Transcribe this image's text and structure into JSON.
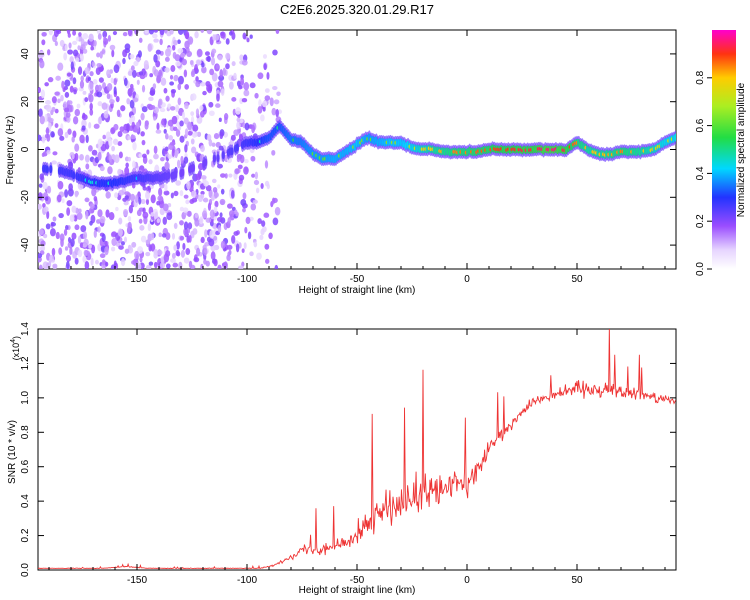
{
  "figure": {
    "title": "C2E6.2025.320.01.29.R17"
  },
  "colors": {
    "line": "#ee3333",
    "axis": "#000000",
    "spectro_low": "#a070ff",
    "spectro_mid": "#22cc66",
    "spectro_high": "#dd2222"
  },
  "chart_data": [
    {
      "type": "heatmap",
      "title": "C2E6.2025.320.01.29.R17",
      "xlabel": "Height of straight line (km)",
      "ylabel": "Frequency (Hz)",
      "xlim": [
        -195,
        95
      ],
      "ylim": [
        -50,
        50
      ],
      "x_ticks": [
        -150,
        -100,
        -50,
        0,
        50
      ],
      "x_tick_labels": [
        "-150",
        "-100",
        "-50",
        "0",
        "50"
      ],
      "y_ticks": [
        -40,
        -20,
        0,
        20,
        40
      ],
      "y_tick_labels": [
        "-40",
        "-20",
        "0",
        "20",
        "40"
      ],
      "colorbar": {
        "label": "Normalized spectral amplitude",
        "range": [
          0,
          1
        ],
        "ticks": [
          0.0,
          0.2,
          0.4,
          0.6,
          0.8
        ],
        "tick_labels": [
          "0.0",
          "0.2",
          "0.4",
          "0.6",
          "0.8"
        ]
      },
      "ridge": {
        "x": [
          -190,
          -180,
          -170,
          -160,
          -150,
          -140,
          -130,
          -120,
          -110,
          -100,
          -95,
          -90,
          -85,
          -80,
          -75,
          -70,
          -65,
          -60,
          -55,
          -50,
          -45,
          -40,
          -35,
          -30,
          -25,
          -20,
          -15,
          -10,
          -5,
          0,
          5,
          10,
          15,
          20,
          25,
          30,
          35,
          40,
          45,
          50,
          55,
          60,
          65,
          70,
          75,
          80,
          85,
          90,
          95
        ],
        "y": [
          -8,
          -10,
          -14,
          -14,
          -12,
          -12,
          -10,
          -6,
          -2,
          3,
          3,
          5,
          10,
          4,
          3,
          -2,
          -4,
          -4,
          -1,
          2,
          5,
          3,
          3,
          3,
          1,
          0,
          0,
          -1,
          -1,
          -1,
          -1,
          0,
          0,
          0,
          0,
          0,
          0,
          0,
          0,
          3,
          0,
          -2,
          -2,
          -1,
          -1,
          -1,
          0,
          3,
          5
        ],
        "amplitude": [
          0.4,
          0.4,
          0.45,
          0.45,
          0.4,
          0.35,
          0.3,
          0.3,
          0.35,
          0.4,
          0.45,
          0.5,
          0.5,
          0.55,
          0.55,
          0.6,
          0.6,
          0.62,
          0.62,
          0.65,
          0.6,
          0.62,
          0.65,
          0.65,
          0.7,
          0.75,
          0.8,
          0.82,
          0.85,
          0.85,
          0.87,
          0.88,
          0.9,
          0.9,
          0.92,
          0.92,
          0.95,
          0.95,
          0.92,
          0.85,
          0.8,
          0.8,
          0.82,
          0.85,
          0.82,
          0.8,
          0.75,
          0.7,
          0.7
        ]
      }
    },
    {
      "type": "line",
      "title": "",
      "xlabel": "Height of straight line (km)",
      "ylabel": "SNR (10 * v/v)",
      "y_multiplier_label": "(x10",
      "y_multiplier_exp": "4",
      "y_multiplier_close": ")",
      "xlim": [
        -195,
        95
      ],
      "ylim": [
        0,
        1.4
      ],
      "x_ticks": [
        -150,
        -100,
        -50,
        0,
        50
      ],
      "x_tick_labels": [
        "-150",
        "-100",
        "-50",
        "0",
        "50"
      ],
      "y_ticks": [
        0.0,
        0.2,
        0.4,
        0.6,
        0.8,
        1.0,
        1.2,
        1.4
      ],
      "y_tick_labels": [
        "0.0",
        "0.2",
        "0.4",
        "0.6",
        "0.8",
        "1.0",
        "1.2",
        "1.4"
      ],
      "series": [
        {
          "x": [
            -195,
            -185,
            -175,
            -165,
            -155,
            -145,
            -135,
            -125,
            -115,
            -105,
            -95,
            -90,
            -85,
            -80,
            -75,
            -70,
            -65,
            -60,
            -55,
            -50,
            -45,
            -40,
            -35,
            -30,
            -25,
            -20,
            -15,
            -10,
            -5,
            0,
            5,
            10,
            15,
            20,
            25,
            30,
            35,
            40,
            45,
            50,
            55,
            60,
            65,
            70,
            75,
            80,
            85,
            90,
            95
          ],
          "y": [
            0.01,
            0.01,
            0.01,
            0.01,
            0.02,
            0.01,
            0.01,
            0.01,
            0.01,
            0.01,
            0.01,
            0.02,
            0.04,
            0.08,
            0.12,
            0.12,
            0.13,
            0.14,
            0.16,
            0.22,
            0.28,
            0.32,
            0.36,
            0.38,
            0.4,
            0.42,
            0.45,
            0.47,
            0.5,
            0.5,
            0.58,
            0.7,
            0.78,
            0.85,
            0.92,
            0.98,
            1.0,
            1.02,
            1.05,
            1.05,
            1.06,
            1.05,
            1.05,
            1.04,
            1.03,
            1.02,
            1.0,
            1.0,
            0.98
          ],
          "spread": [
            0.003,
            0.003,
            0.003,
            0.003,
            0.006,
            0.003,
            0.003,
            0.003,
            0.003,
            0.003,
            0.005,
            0.01,
            0.02,
            0.04,
            0.06,
            0.07,
            0.08,
            0.09,
            0.1,
            0.16,
            0.2,
            0.22,
            0.24,
            0.24,
            0.25,
            0.28,
            0.28,
            0.25,
            0.22,
            0.2,
            0.16,
            0.12,
            0.1,
            0.08,
            0.07,
            0.06,
            0.07,
            0.08,
            0.1,
            0.12,
            0.12,
            0.12,
            0.12,
            0.1,
            0.08,
            0.07,
            0.06,
            0.06,
            0.05
          ]
        }
      ]
    }
  ]
}
